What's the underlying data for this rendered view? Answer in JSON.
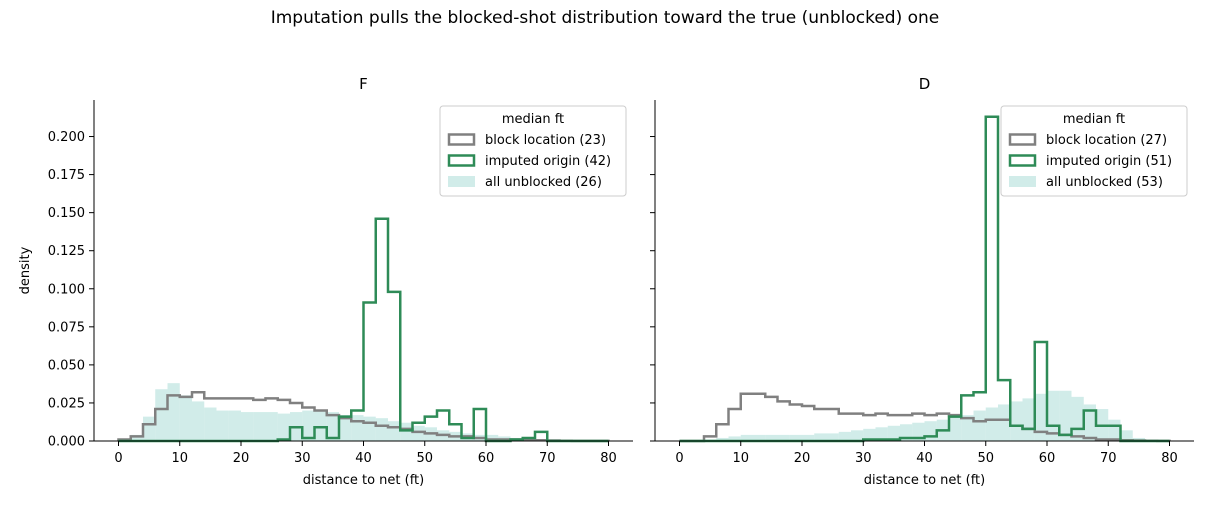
{
  "figure": {
    "title": "Imputation pulls the blocked-shot distribution toward the true (unblocked) one"
  },
  "colors": {
    "block": "#808080",
    "imputed": "#2e8b57",
    "unblocked": "#b2dfdb"
  },
  "chart_data": [
    {
      "type": "histogram",
      "title": "F",
      "xlabel": "distance to net (ft)",
      "ylabel": "density",
      "xlim": [
        -4,
        84
      ],
      "ylim": [
        0,
        0.224
      ],
      "xticks": [
        0,
        10,
        20,
        30,
        40,
        50,
        60,
        70,
        80
      ],
      "yticks": [
        0.0,
        0.025,
        0.05,
        0.075,
        0.1,
        0.125,
        0.15,
        0.175,
        0.2
      ],
      "ytick_labels": [
        "0.000",
        "0.025",
        "0.050",
        "0.075",
        "0.100",
        "0.125",
        "0.150",
        "0.175",
        "0.200"
      ],
      "bin_edges": [
        0,
        2,
        4,
        6,
        8,
        10,
        12,
        14,
        16,
        18,
        20,
        22,
        24,
        26,
        28,
        30,
        32,
        34,
        36,
        38,
        40,
        42,
        44,
        46,
        48,
        50,
        52,
        54,
        56,
        58,
        60,
        62,
        64,
        66,
        68,
        70,
        72,
        74,
        76,
        78,
        80
      ],
      "legend": {
        "title": "median ft",
        "position": "upper right"
      },
      "series": [
        {
          "name": "all unblocked (26)",
          "style": "filled",
          "values": [
            0,
            0.004,
            0.016,
            0.034,
            0.038,
            0.03,
            0.026,
            0.022,
            0.02,
            0.02,
            0.019,
            0.019,
            0.019,
            0.018,
            0.019,
            0.02,
            0.02,
            0.019,
            0.017,
            0.017,
            0.016,
            0.015,
            0.013,
            0.012,
            0.01,
            0.009,
            0.007,
            0.006,
            0.005,
            0.004,
            0.004,
            0.003,
            0.002,
            0.002,
            0.001,
            0.001,
            0.001,
            0.0005,
            0.0003,
            0.0002
          ]
        },
        {
          "name": "block location (23)",
          "style": "step",
          "values": [
            0.001,
            0.003,
            0.011,
            0.021,
            0.03,
            0.029,
            0.032,
            0.028,
            0.028,
            0.028,
            0.028,
            0.027,
            0.028,
            0.027,
            0.025,
            0.022,
            0.02,
            0.017,
            0.015,
            0.013,
            0.012,
            0.01,
            0.009,
            0.008,
            0.006,
            0.005,
            0.004,
            0.003,
            0.003,
            0.002,
            0.001,
            0.001,
            0.001,
            0.0005,
            0.0005,
            0.0003,
            0.0002,
            0.0001,
            0.0001,
            0.0001
          ]
        },
        {
          "name": "imputed origin (42)",
          "style": "step",
          "values": [
            0,
            0,
            0,
            0,
            0,
            0,
            0,
            0,
            0,
            0,
            0,
            0,
            0,
            0.001,
            0.009,
            0.002,
            0.009,
            0.002,
            0.016,
            0.02,
            0.091,
            0.146,
            0.098,
            0.007,
            0.012,
            0.016,
            0.02,
            0.011,
            0.002,
            0.021,
            0,
            0,
            0.001,
            0.002,
            0.006,
            0,
            0,
            0,
            0,
            0
          ]
        }
      ]
    },
    {
      "type": "histogram",
      "title": "D",
      "xlabel": "distance to net (ft)",
      "ylabel": "",
      "xlim": [
        -4,
        84
      ],
      "ylim": [
        0,
        0.224
      ],
      "xticks": [
        0,
        10,
        20,
        30,
        40,
        50,
        60,
        70,
        80
      ],
      "yticks": [
        0.0,
        0.025,
        0.05,
        0.075,
        0.1,
        0.125,
        0.15,
        0.175,
        0.2
      ],
      "bin_edges": [
        0,
        2,
        4,
        6,
        8,
        10,
        12,
        14,
        16,
        18,
        20,
        22,
        24,
        26,
        28,
        30,
        32,
        34,
        36,
        38,
        40,
        42,
        44,
        46,
        48,
        50,
        52,
        54,
        56,
        58,
        60,
        62,
        64,
        66,
        68,
        70,
        72,
        74,
        76,
        78,
        80
      ],
      "legend": {
        "title": "median ft",
        "position": "upper right"
      },
      "series": [
        {
          "name": "all unblocked (53)",
          "style": "filled",
          "values": [
            0,
            0.0005,
            0.001,
            0.002,
            0.003,
            0.004,
            0.004,
            0.004,
            0.004,
            0.004,
            0.004,
            0.005,
            0.005,
            0.006,
            0.007,
            0.008,
            0.009,
            0.01,
            0.011,
            0.012,
            0.013,
            0.014,
            0.016,
            0.017,
            0.02,
            0.022,
            0.024,
            0.026,
            0.028,
            0.031,
            0.033,
            0.033,
            0.029,
            0.024,
            0.021,
            0.014,
            0.007,
            0.002,
            0.0005,
            0.0002
          ]
        },
        {
          "name": "block location (27)",
          "style": "step",
          "values": [
            0,
            0,
            0.003,
            0.011,
            0.021,
            0.031,
            0.031,
            0.029,
            0.026,
            0.024,
            0.023,
            0.021,
            0.021,
            0.018,
            0.018,
            0.017,
            0.018,
            0.017,
            0.017,
            0.018,
            0.017,
            0.018,
            0.017,
            0.015,
            0.013,
            0.014,
            0.014,
            0.01,
            0.008,
            0.006,
            0.005,
            0.004,
            0.003,
            0.002,
            0.001,
            0.001,
            0.0005,
            0.0003,
            0.0002,
            0.0001
          ]
        },
        {
          "name": "imputed origin (51)",
          "style": "step",
          "values": [
            0,
            0,
            0,
            0,
            0,
            0,
            0,
            0,
            0,
            0,
            0,
            0,
            0,
            0,
            0,
            0.001,
            0.001,
            0.001,
            0.002,
            0.002,
            0.003,
            0.007,
            0.016,
            0.03,
            0.032,
            0.213,
            0.04,
            0.01,
            0.008,
            0.065,
            0.01,
            0.004,
            0.008,
            0.02,
            0.01,
            0.01,
            0,
            0,
            0,
            0
          ]
        }
      ]
    }
  ]
}
